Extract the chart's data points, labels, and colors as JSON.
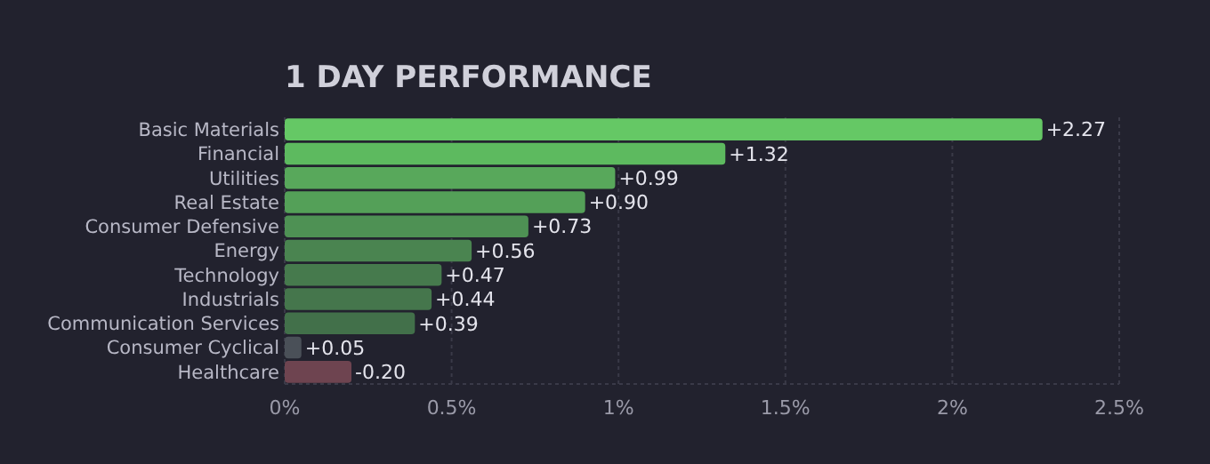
{
  "chart_data": {
    "type": "bar",
    "orientation": "horizontal",
    "title": "1 DAY PERFORMANCE",
    "categories": [
      "Basic Materials",
      "Financial",
      "Utilities",
      "Real Estate",
      "Consumer Defensive",
      "Energy",
      "Technology",
      "Industrials",
      "Communication Services",
      "Consumer Cyclical",
      "Healthcare"
    ],
    "values": [
      2.27,
      1.32,
      0.99,
      0.9,
      0.73,
      0.56,
      0.47,
      0.44,
      0.39,
      0.05,
      -0.2
    ],
    "base": [
      0,
      0,
      0,
      0,
      0,
      0,
      0,
      0,
      0,
      0,
      0.2
    ],
    "colors": [
      "#65c865",
      "#5dba5f",
      "#58a85b",
      "#54a058",
      "#4e9154",
      "#4a8450",
      "#467a4d",
      "#45764c",
      "#42704a",
      "#4a5058",
      "#6e4450"
    ],
    "value_labels": [
      "+2.27",
      "+1.32",
      "+0.99",
      "+0.90",
      "+0.73",
      "+0.56",
      "+0.47",
      "+0.44",
      "+0.39",
      "+0.05",
      "-0.20"
    ],
    "xlim": [
      0,
      2.5
    ],
    "xticks": [
      {
        "value": 0,
        "label": "0%"
      },
      {
        "value": 0.5,
        "label": "0.5%"
      },
      {
        "value": 1,
        "label": "1%"
      },
      {
        "value": 1.5,
        "label": "1.5%"
      },
      {
        "value": 2,
        "label": "2%"
      },
      {
        "value": 2.5,
        "label": "2.5%"
      }
    ],
    "grid": "x"
  }
}
